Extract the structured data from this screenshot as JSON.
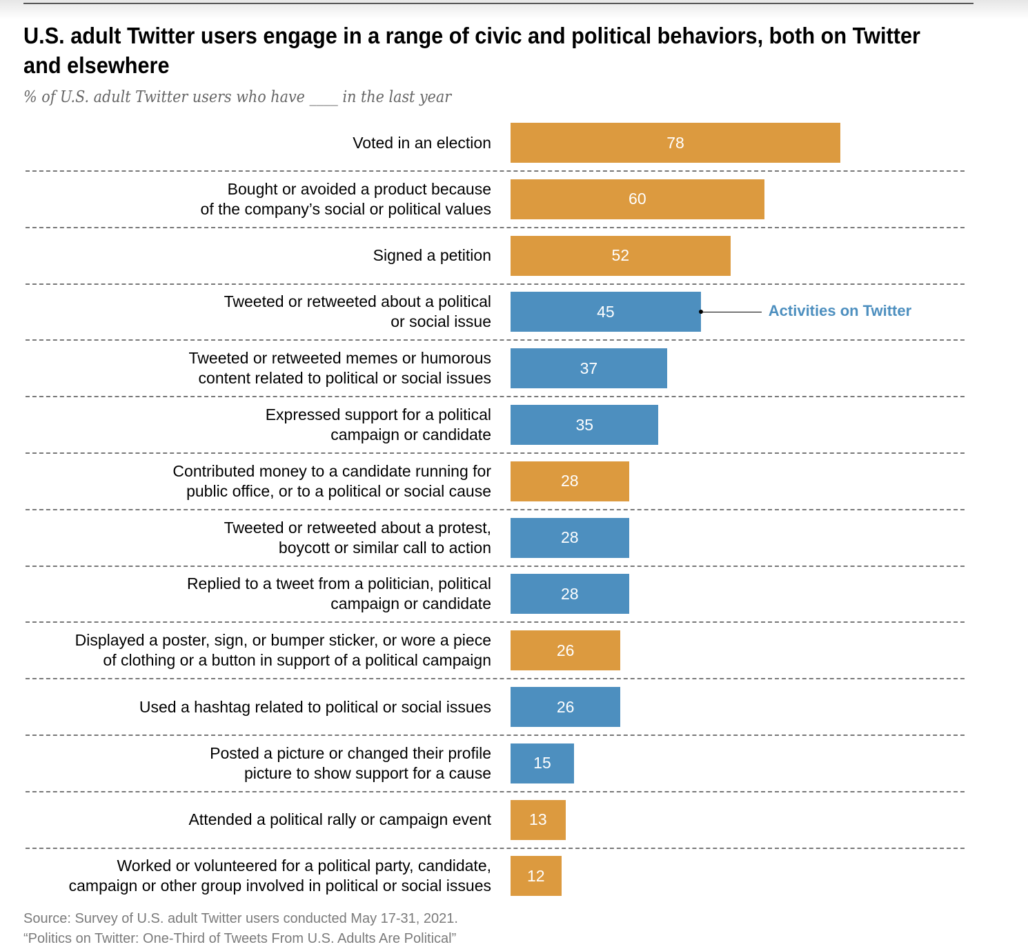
{
  "chart_data": {
    "type": "bar",
    "orientation": "horizontal",
    "title": "U.S. adult Twitter users engage in a range of civic and political behaviors, both on Twitter and elsewhere",
    "subtitle": "% of U.S. adult Twitter users who have ____ in the last year",
    "xlim": [
      0,
      78
    ],
    "colors": {
      "elsewhere": "#dc9a3f",
      "twitter": "#4d8fbf"
    },
    "annotation": "Activities on Twitter",
    "bars": [
      {
        "label": "Voted in an election",
        "value": 78,
        "group": "elsewhere"
      },
      {
        "label": "Bought or avoided a product because\nof the company’s social or political values",
        "value": 60,
        "group": "elsewhere"
      },
      {
        "label": "Signed a petition",
        "value": 52,
        "group": "elsewhere"
      },
      {
        "label": "Tweeted or retweeted about a political\nor social issue",
        "value": 45,
        "group": "twitter"
      },
      {
        "label": "Tweeted or retweeted memes or humorous\ncontent related to political or social issues",
        "value": 37,
        "group": "twitter"
      },
      {
        "label": "Expressed support for a political\ncampaign or candidate",
        "value": 35,
        "group": "twitter"
      },
      {
        "label": "Contributed money to a candidate running for\npublic office, or to a political or social cause",
        "value": 28,
        "group": "elsewhere"
      },
      {
        "label": "Tweeted or retweeted about a protest,\nboycott or similar call to action",
        "value": 28,
        "group": "twitter"
      },
      {
        "label": "Replied to a tweet from a politician, political\ncampaign or candidate",
        "value": 28,
        "group": "twitter"
      },
      {
        "label": "Displayed a poster, sign, or bumper sticker, or wore a piece\nof clothing or a button in support of a political campaign",
        "value": 26,
        "group": "elsewhere"
      },
      {
        "label": "Used a hashtag related to political or social issues",
        "value": 26,
        "group": "twitter"
      },
      {
        "label": "Posted a picture or changed their profile\npicture to show support for a cause",
        "value": 15,
        "group": "twitter"
      },
      {
        "label": "Attended a political rally or campaign event",
        "value": 13,
        "group": "elsewhere"
      },
      {
        "label": "Worked or volunteered for a political party, candidate,\ncampaign or other group involved in political or social issues",
        "value": 12,
        "group": "elsewhere"
      }
    ],
    "source": [
      "Source: Survey of U.S. adult Twitter users conducted May 17-31, 2021.",
      "“Politics on Twitter: One-Third of Tweets From U.S. Adults Are Political”"
    ]
  }
}
